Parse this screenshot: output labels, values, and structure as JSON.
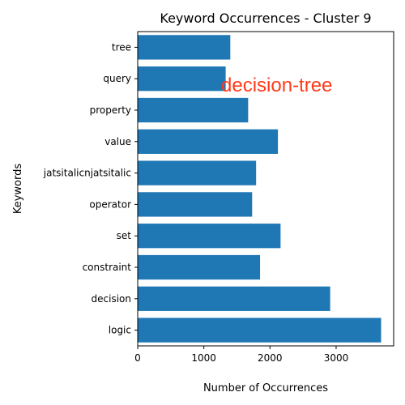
{
  "chart_data": {
    "type": "bar",
    "orientation": "horizontal",
    "title": "Keyword Occurrences - Cluster 9",
    "xlabel": "Number of Occurrences",
    "ylabel": "Keywords",
    "categories": [
      "logic",
      "decision",
      "constraint",
      "set",
      "operator",
      "jatsitalicnjatsitalic",
      "value",
      "property",
      "query",
      "tree"
    ],
    "values": [
      3680,
      2910,
      1850,
      2160,
      1730,
      1790,
      2120,
      1670,
      1330,
      1400
    ],
    "xlim": [
      0,
      3870
    ],
    "xticks": [
      0,
      1000,
      2000,
      3000
    ],
    "grid": false,
    "bar_color": "#1f77b4",
    "annotation": {
      "text": "decision-tree",
      "color": "#ff3b1a"
    }
  }
}
